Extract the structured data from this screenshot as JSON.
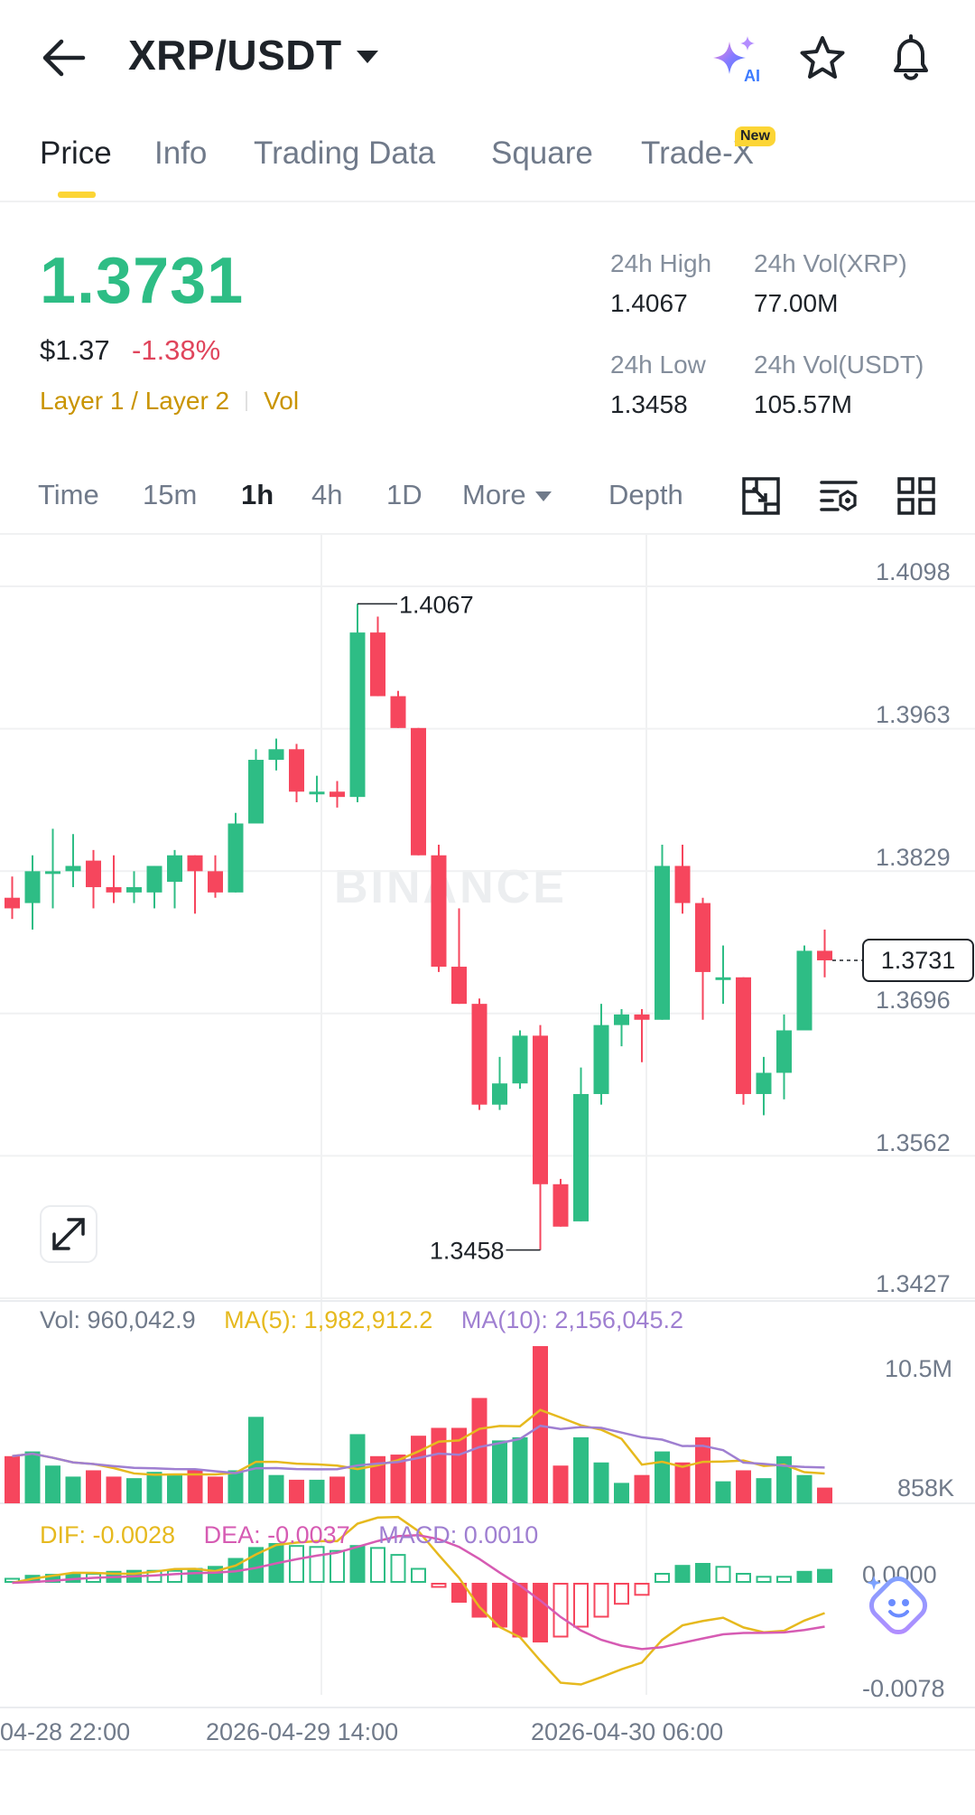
{
  "header": {
    "title": "XRP/USDT",
    "icons": [
      "back-arrow-icon",
      "ai-sparkle-icon",
      "star-icon",
      "bell-icon"
    ],
    "ai_label": "AI"
  },
  "tabs": [
    {
      "label": "Price",
      "active": true
    },
    {
      "label": "Info"
    },
    {
      "label": "Trading Data"
    },
    {
      "label": "Square"
    },
    {
      "label": "Trade-X",
      "badge": "New"
    }
  ],
  "summary": {
    "last_price": "1.3731",
    "usd_price": "$1.37",
    "change": "-1.38%",
    "tag1": "Layer 1 / Layer 2",
    "tag2": "Vol",
    "high_label": "24h High",
    "high_value": "1.4067",
    "vol_xrp_label": "24h Vol(XRP)",
    "vol_xrp_value": "77.00M",
    "low_label": "24h Low",
    "low_value": "1.3458",
    "vol_usdt_label": "24h Vol(USDT)",
    "vol_usdt_value": "105.57M"
  },
  "intervals": {
    "items": [
      "Time",
      "15m",
      "1h",
      "4h",
      "1D",
      "More",
      "Depth"
    ],
    "active": "1h",
    "tool_icons": [
      "fullscreen-exit-icon",
      "indicator-settings-icon",
      "grid-layout-icon"
    ]
  },
  "chart": {
    "watermark": "BINANCE",
    "price_axis": [
      "1.4098",
      "1.3963",
      "1.3829",
      "1.3696",
      "1.3562",
      "1.3427"
    ],
    "current_price": "1.3731",
    "high_marker": "1.4067",
    "low_marker": "1.3458",
    "vol_axis": [
      "10.5M",
      "858K"
    ],
    "macd_axis": [
      "0.0000",
      "-0.0078"
    ],
    "vol_legend": {
      "vol": "Vol: 960,042.9",
      "ma5": "MA(5): 1,982,912.2",
      "ma10": "MA(10): 2,156,045.2"
    },
    "macd_legend": {
      "dif": "DIF: -0.0028",
      "dea": "DEA: -0.0037",
      "macd": "MACD: 0.0010"
    },
    "dates": [
      "04-28 22:00",
      "2026-04-29 14:00",
      "2026-04-30 06:00"
    ],
    "colors": {
      "up": "#2ebd85",
      "down": "#f6465d",
      "ma5": "#e6b91e",
      "ma10": "#9f7fd1",
      "dea": "#d65bb3"
    }
  },
  "chart_data": {
    "type": "candlestick",
    "ylim": [
      1.3427,
      1.4098
    ],
    "ohlc": [
      [
        1.379,
        1.381,
        1.377,
        1.378
      ],
      [
        1.3785,
        1.383,
        1.376,
        1.3815
      ],
      [
        1.3815,
        1.3855,
        1.378,
        1.3815
      ],
      [
        1.3815,
        1.385,
        1.38,
        1.382
      ],
      [
        1.3825,
        1.3835,
        1.378,
        1.38
      ],
      [
        1.38,
        1.383,
        1.3785,
        1.3795
      ],
      [
        1.3795,
        1.3815,
        1.3785,
        1.38
      ],
      [
        1.3795,
        1.382,
        1.378,
        1.382
      ],
      [
        1.3805,
        1.3835,
        1.378,
        1.383
      ],
      [
        1.383,
        1.383,
        1.3775,
        1.3815
      ],
      [
        1.3815,
        1.383,
        1.379,
        1.3795
      ],
      [
        1.3795,
        1.387,
        1.3795,
        1.386
      ],
      [
        1.386,
        1.393,
        1.386,
        1.392
      ],
      [
        1.392,
        1.394,
        1.391,
        1.393
      ],
      [
        1.393,
        1.3935,
        1.388,
        1.389
      ],
      [
        1.389,
        1.3905,
        1.388,
        1.389
      ],
      [
        1.389,
        1.39,
        1.3875,
        1.3885
      ],
      [
        1.3885,
        1.4067,
        1.388,
        1.404
      ],
      [
        1.404,
        1.4055,
        1.398,
        1.398
      ],
      [
        1.398,
        1.3985,
        1.395,
        1.395
      ],
      [
        1.395,
        1.395,
        1.383,
        1.383
      ],
      [
        1.383,
        1.384,
        1.372,
        1.3725
      ],
      [
        1.3725,
        1.378,
        1.369,
        1.369
      ],
      [
        1.369,
        1.3695,
        1.359,
        1.3595
      ],
      [
        1.3595,
        1.364,
        1.359,
        1.3615
      ],
      [
        1.3615,
        1.3665,
        1.361,
        1.366
      ],
      [
        1.366,
        1.367,
        1.3458,
        1.352
      ],
      [
        1.352,
        1.3525,
        1.348,
        1.348
      ],
      [
        1.3485,
        1.363,
        1.3485,
        1.3605
      ],
      [
        1.3605,
        1.369,
        1.3595,
        1.367
      ],
      [
        1.367,
        1.3685,
        1.365,
        1.368
      ],
      [
        1.368,
        1.3685,
        1.3635,
        1.3675
      ],
      [
        1.3675,
        1.384,
        1.3675,
        1.382
      ],
      [
        1.382,
        1.384,
        1.3775,
        1.3785
      ],
      [
        1.3785,
        1.379,
        1.3675,
        1.372
      ],
      [
        1.3715,
        1.3745,
        1.369,
        1.3715
      ],
      [
        1.3715,
        1.3715,
        1.3595,
        1.3605
      ],
      [
        1.3605,
        1.364,
        1.3585,
        1.3625
      ],
      [
        1.3625,
        1.368,
        1.36,
        1.3665
      ],
      [
        1.3665,
        1.3745,
        1.3665,
        1.374
      ],
      [
        1.374,
        1.376,
        1.3715,
        1.3731
      ]
    ],
    "volume_relative": [
      0.3,
      0.33,
      0.24,
      0.17,
      0.21,
      0.17,
      0.16,
      0.2,
      0.18,
      0.21,
      0.17,
      0.21,
      0.55,
      0.18,
      0.15,
      0.15,
      0.17,
      0.44,
      0.3,
      0.31,
      0.43,
      0.48,
      0.48,
      0.67,
      0.4,
      0.42,
      1.0,
      0.24,
      0.42,
      0.26,
      0.13,
      0.18,
      0.33,
      0.26,
      0.42,
      0.14,
      0.21,
      0.16,
      0.3,
      0.18,
      0.1
    ],
    "macd_hist_relative": [
      0.05,
      0.08,
      0.09,
      0.1,
      0.1,
      0.12,
      0.13,
      0.13,
      0.13,
      0.15,
      0.17,
      0.25,
      0.36,
      0.4,
      0.38,
      0.37,
      0.33,
      0.38,
      0.36,
      0.29,
      0.15,
      -0.05,
      -0.2,
      -0.35,
      -0.45,
      -0.55,
      -0.6,
      -0.55,
      -0.45,
      -0.35,
      -0.22,
      -0.13,
      0.1,
      0.18,
      0.2,
      0.17,
      0.1,
      0.07,
      0.07,
      0.12,
      0.14
    ]
  }
}
